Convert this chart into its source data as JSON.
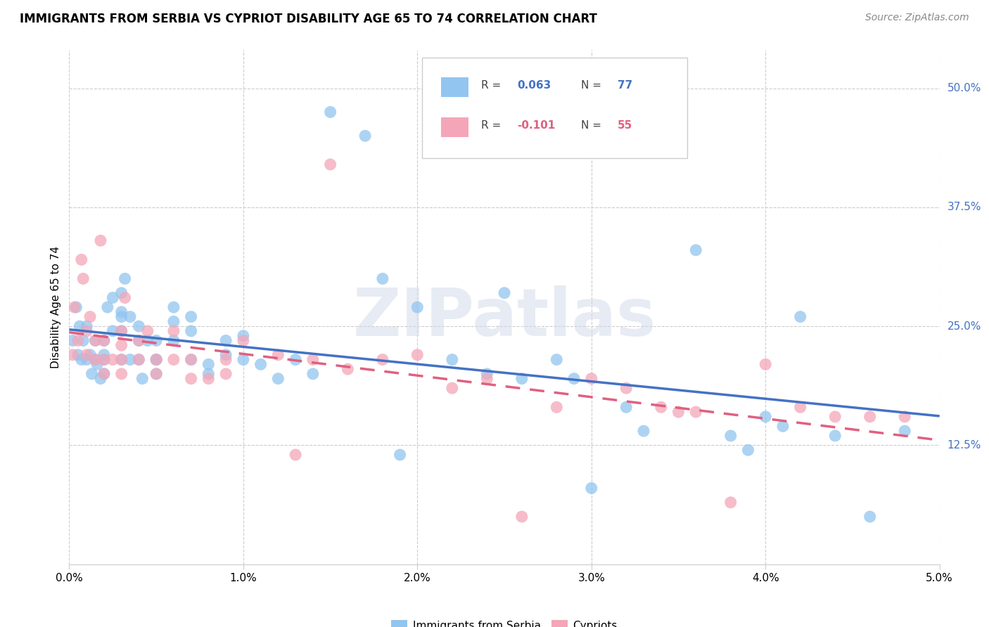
{
  "title": "IMMIGRANTS FROM SERBIA VS CYPRIOT DISABILITY AGE 65 TO 74 CORRELATION CHART",
  "source": "Source: ZipAtlas.com",
  "ylabel": "Disability Age 65 to 74",
  "ytick_values": [
    0.125,
    0.25,
    0.375,
    0.5
  ],
  "ytick_labels": [
    "12.5%",
    "25.0%",
    "37.5%",
    "50.0%"
  ],
  "xmin": 0.0,
  "xmax": 0.05,
  "ymin": 0.0,
  "ymax": 0.54,
  "legend_serbia_label": "Immigrants from Serbia",
  "legend_cypriot_label": "Cypriots",
  "color_serbia": "#92C5F0",
  "color_cypriot": "#F4A6B8",
  "color_serbia_line": "#4472C4",
  "color_cypriot_line": "#E06080",
  "watermark": "ZIPatlas",
  "serbia_R": 0.063,
  "serbia_N": 77,
  "cypriot_R": -0.101,
  "cypriot_N": 55,
  "serbia_x": [
    0.0002,
    0.0004,
    0.0005,
    0.0006,
    0.0007,
    0.0008,
    0.001,
    0.001,
    0.0012,
    0.0013,
    0.0015,
    0.0015,
    0.0016,
    0.0018,
    0.002,
    0.002,
    0.002,
    0.002,
    0.0022,
    0.0025,
    0.0025,
    0.003,
    0.003,
    0.003,
    0.003,
    0.003,
    0.0032,
    0.0035,
    0.0035,
    0.004,
    0.004,
    0.004,
    0.0042,
    0.0045,
    0.005,
    0.005,
    0.005,
    0.005,
    0.006,
    0.006,
    0.006,
    0.007,
    0.007,
    0.007,
    0.008,
    0.008,
    0.009,
    0.009,
    0.01,
    0.01,
    0.011,
    0.012,
    0.013,
    0.014,
    0.015,
    0.017,
    0.018,
    0.019,
    0.02,
    0.022,
    0.024,
    0.025,
    0.026,
    0.028,
    0.029,
    0.03,
    0.032,
    0.033,
    0.036,
    0.038,
    0.039,
    0.04,
    0.041,
    0.042,
    0.044,
    0.046,
    0.048
  ],
  "serbia_y": [
    0.235,
    0.27,
    0.22,
    0.25,
    0.215,
    0.235,
    0.25,
    0.215,
    0.22,
    0.2,
    0.235,
    0.215,
    0.21,
    0.195,
    0.235,
    0.22,
    0.215,
    0.2,
    0.27,
    0.28,
    0.245,
    0.285,
    0.265,
    0.26,
    0.245,
    0.215,
    0.3,
    0.26,
    0.215,
    0.25,
    0.235,
    0.215,
    0.195,
    0.235,
    0.215,
    0.235,
    0.215,
    0.2,
    0.27,
    0.255,
    0.235,
    0.26,
    0.245,
    0.215,
    0.21,
    0.2,
    0.235,
    0.22,
    0.24,
    0.215,
    0.21,
    0.195,
    0.215,
    0.2,
    0.475,
    0.45,
    0.3,
    0.115,
    0.27,
    0.215,
    0.2,
    0.285,
    0.195,
    0.215,
    0.195,
    0.08,
    0.165,
    0.14,
    0.33,
    0.135,
    0.12,
    0.155,
    0.145,
    0.26,
    0.135,
    0.05,
    0.14
  ],
  "cypriot_x": [
    0.0002,
    0.0003,
    0.0005,
    0.0007,
    0.0008,
    0.001,
    0.001,
    0.0012,
    0.0015,
    0.0015,
    0.0018,
    0.002,
    0.002,
    0.002,
    0.0025,
    0.003,
    0.003,
    0.003,
    0.003,
    0.0032,
    0.004,
    0.004,
    0.0045,
    0.005,
    0.005,
    0.006,
    0.006,
    0.007,
    0.007,
    0.008,
    0.009,
    0.009,
    0.01,
    0.012,
    0.013,
    0.014,
    0.015,
    0.016,
    0.018,
    0.02,
    0.022,
    0.024,
    0.026,
    0.028,
    0.03,
    0.032,
    0.034,
    0.035,
    0.036,
    0.038,
    0.04,
    0.042,
    0.044,
    0.046,
    0.048
  ],
  "cypriot_y": [
    0.22,
    0.27,
    0.235,
    0.32,
    0.3,
    0.245,
    0.22,
    0.26,
    0.235,
    0.215,
    0.34,
    0.235,
    0.215,
    0.2,
    0.215,
    0.245,
    0.23,
    0.215,
    0.2,
    0.28,
    0.235,
    0.215,
    0.245,
    0.215,
    0.2,
    0.245,
    0.215,
    0.215,
    0.195,
    0.195,
    0.215,
    0.2,
    0.235,
    0.22,
    0.115,
    0.215,
    0.42,
    0.205,
    0.215,
    0.22,
    0.185,
    0.195,
    0.05,
    0.165,
    0.195,
    0.185,
    0.165,
    0.16,
    0.16,
    0.065,
    0.21,
    0.165,
    0.155,
    0.155,
    0.155
  ]
}
